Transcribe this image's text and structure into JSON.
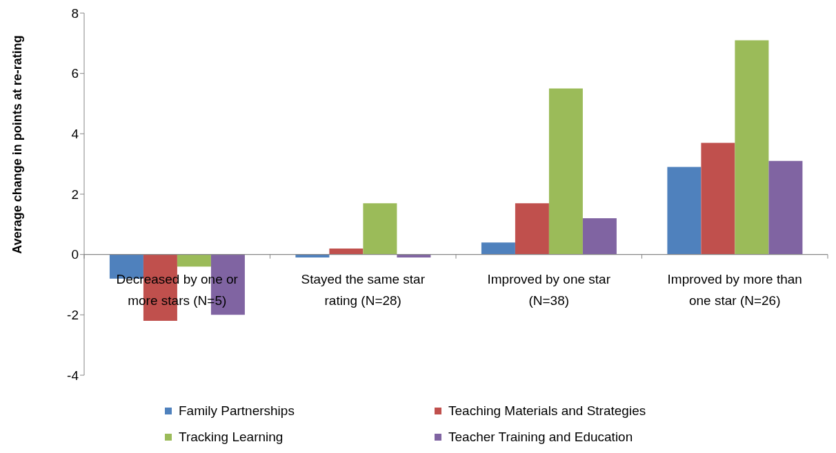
{
  "chart_data": {
    "type": "bar",
    "ylabel": "Average change in points at re-rating",
    "categories": [
      "Decreased by one or more stars (N=5)",
      "Stayed the same star rating (N=28)",
      "Improved by one star (N=38)",
      "Improved by more than one star (N=26)"
    ],
    "series": [
      {
        "name": "Family Partnerships",
        "color": "#4f81bd",
        "values": [
          -0.8,
          -0.1,
          0.4,
          2.9
        ]
      },
      {
        "name": "Teaching Materials and Strategies",
        "color": "#c0504d",
        "values": [
          -2.2,
          0.2,
          1.7,
          3.7
        ]
      },
      {
        "name": "Tracking Learning",
        "color": "#9bbb59",
        "values": [
          -0.4,
          1.7,
          5.5,
          7.1
        ]
      },
      {
        "name": "Teacher Training and Education",
        "color": "#8064a2",
        "values": [
          -2.0,
          -0.1,
          1.2,
          3.1
        ]
      }
    ],
    "ylim": [
      -4,
      8
    ],
    "yticks": [
      -4,
      -2,
      0,
      2,
      4,
      6,
      8
    ],
    "legend": "bottom"
  }
}
